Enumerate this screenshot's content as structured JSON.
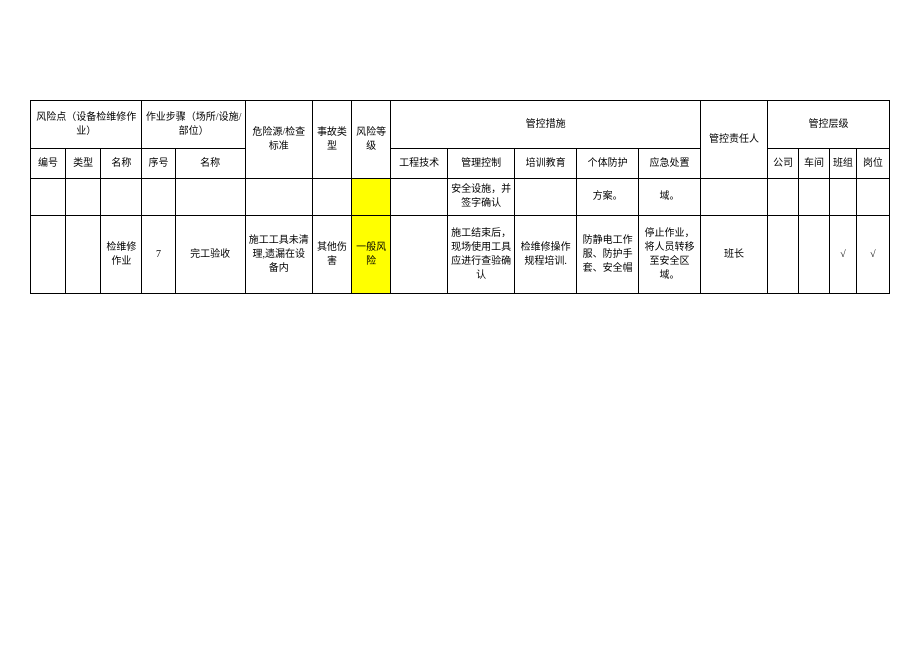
{
  "table": {
    "header": {
      "riskPoint": "风险点（设备检维修作业）",
      "workStep": "作业步骤（场所/设施/部位）",
      "hazardSource": "危险源/检查标准",
      "accidentType": "事故类型",
      "riskLevel": "风险等级",
      "controlMeasure": "管控措施",
      "controlPerson": "管控责任人",
      "controlLevel": "管控层级",
      "sub": {
        "serialNo": "编号",
        "type": "类型",
        "name1": "名称",
        "seqNo": "序号",
        "name2": "名称",
        "engTech": "工程技术",
        "mgmtControl": "管理控制",
        "trainEdu": "培训教育",
        "personalProtect": "个体防护",
        "emergencyHandle": "应急处置",
        "company": "公司",
        "workshop": "车间",
        "team": "班组",
        "post": "岗位"
      }
    },
    "rows": [
      {
        "serialNo": "",
        "type": "",
        "name1": "",
        "seqNo": "",
        "name2": "",
        "hazardSource": "",
        "accidentType": "",
        "riskLevel": "",
        "riskLevelHighlight": true,
        "engTech": "",
        "mgmtControl": "安全设施，并签字确认",
        "trainEdu": "",
        "personalProtect": "方案。",
        "emergencyHandle": "域。",
        "controlPerson": "",
        "company": "",
        "workshop": "",
        "team": "",
        "post": ""
      },
      {
        "serialNo": "",
        "type": "",
        "name1": "检维修作业",
        "seqNo": "7",
        "name2": "完工验收",
        "hazardSource": "施工工具未清理,遗漏在设备内",
        "accidentType": "其他伤害",
        "riskLevel": "一般风险",
        "riskLevelHighlight": true,
        "engTech": "",
        "mgmtControl": "施工结束后，现场使用工具应进行查验确认",
        "trainEdu": "检维修操作规程培训.",
        "personalProtect": "防静电工作服、防护手套、安全帽",
        "emergencyHandle": "停止作业，将人员转移至安全区域。",
        "controlPerson": "班长",
        "company": "",
        "workshop": "",
        "team": "√",
        "post": "√"
      }
    ]
  },
  "colors": {
    "background": "#ffffff",
    "border": "#000000",
    "highlight": "#ffff00",
    "text": "#000000"
  }
}
